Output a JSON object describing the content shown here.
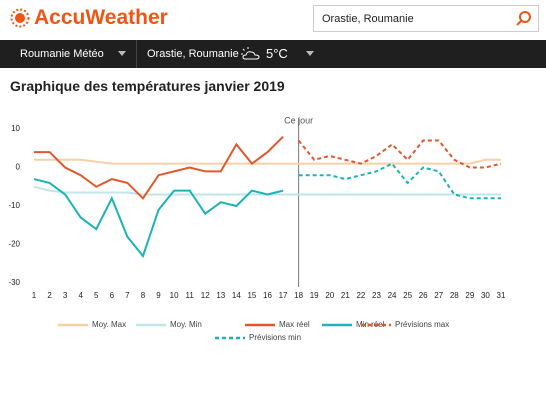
{
  "header": {
    "logo": "AccuWeather",
    "search": "Orastie, Roumanie"
  },
  "nav": {
    "country": "Roumanie Météo",
    "location": "Orastie, Roumanie",
    "temperature": "5°C"
  },
  "chart_data": {
    "type": "line",
    "title": "Graphique des températures janvier 2019",
    "categories": [
      "1",
      "2",
      "3",
      "4",
      "5",
      "6",
      "7",
      "8",
      "9",
      "10",
      "11",
      "12",
      "13",
      "14",
      "15",
      "16",
      "17",
      "18",
      "19",
      "20",
      "21",
      "22",
      "23",
      "24",
      "25",
      "26",
      "27",
      "28",
      "29",
      "30",
      "31"
    ],
    "ylim": [
      -30,
      10
    ],
    "yticks": [
      10,
      0,
      -10,
      -20,
      -30
    ],
    "annotation": {
      "text": "Ce jour",
      "x": "18"
    },
    "series": [
      {
        "name": "Moy. Max",
        "color": "#f9cfa8",
        "style": "solid",
        "values": [
          2,
          2,
          2,
          2,
          1.5,
          1,
          1,
          1,
          1,
          1,
          1,
          1,
          1,
          1,
          1,
          1,
          1,
          1,
          1,
          1,
          1,
          1,
          1,
          1,
          1,
          1,
          1,
          1,
          1,
          2,
          2
        ]
      },
      {
        "name": "Moy. Min",
        "color": "#bfe6ea",
        "style": "solid",
        "values": [
          -5,
          -6,
          -6.5,
          -6.5,
          -6.5,
          -6.5,
          -6.5,
          -7,
          -7,
          -7,
          -7,
          -7,
          -7,
          -7,
          -7,
          -7,
          -7,
          -7,
          -7,
          -7,
          -7,
          -7,
          -7,
          -7,
          -7,
          -7,
          -7,
          -7,
          -7,
          -7,
          -7
        ]
      },
      {
        "name": "Max réel",
        "color": "#e2572b",
        "style": "solid",
        "values": [
          4,
          4,
          0,
          -2,
          -5,
          -3,
          -4,
          -8,
          -2,
          -1,
          0,
          -1,
          -1,
          6,
          1,
          4,
          8,
          null,
          null,
          null,
          null,
          null,
          null,
          null,
          null,
          null,
          null,
          null,
          null,
          null,
          null
        ]
      },
      {
        "name": "Min réel",
        "color": "#1ab3b8",
        "style": "solid",
        "values": [
          -3,
          -4,
          -7,
          -13,
          -16,
          -8,
          -18,
          -23,
          -11,
          -6,
          -6,
          -12,
          -9,
          -10,
          -6,
          -7,
          -6,
          null,
          null,
          null,
          null,
          null,
          null,
          null,
          null,
          null,
          null,
          null,
          null,
          null,
          null
        ]
      },
      {
        "name": "Prévisions max",
        "color": "#e2572b",
        "style": "dashed",
        "values": [
          null,
          null,
          null,
          null,
          null,
          null,
          null,
          null,
          null,
          null,
          null,
          null,
          null,
          null,
          null,
          null,
          null,
          7,
          2,
          3,
          2,
          1,
          3,
          6,
          2,
          7,
          7,
          2,
          0,
          0,
          1
        ]
      },
      {
        "name": "Prévisions min",
        "color": "#1ab3b8",
        "style": "dashed",
        "values": [
          null,
          null,
          null,
          null,
          null,
          null,
          null,
          null,
          null,
          null,
          null,
          null,
          null,
          null,
          null,
          null,
          null,
          -2,
          -2,
          -2,
          -3,
          -2,
          -1,
          1,
          -4,
          0,
          -1,
          -7,
          -8,
          -8,
          -8
        ]
      }
    ]
  }
}
